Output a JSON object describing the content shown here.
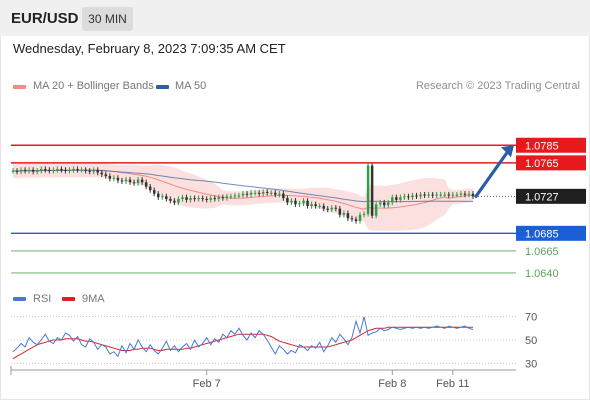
{
  "header": {
    "symbol": "EUR/USD",
    "timeframe": "30 MIN",
    "datetime": "Wednesday, February 8, 2023 7:09:35 AM CET"
  },
  "legend": {
    "ma20_label": "MA 20 + Bollinger Bands",
    "ma50_label": "MA 50",
    "credit": "Research © 2023 Trading Central",
    "colors": {
      "ma20": "#f28b82",
      "ma50": "#2e5fa3",
      "bands": "#fbd6d6"
    }
  },
  "rsi_legend": {
    "rsi_label": "RSI",
    "ma_label": "9MA",
    "colors": {
      "rsi": "#4a78d4",
      "ma": "#e02020"
    }
  },
  "chart_data": [
    {
      "type": "candlestick",
      "title": "EUR/USD",
      "ylim": [
        1.0632,
        1.0808
      ],
      "x_tick_labels": [
        {
          "label": "Feb 7",
          "index": 48
        },
        {
          "label": "Feb 8",
          "index": 94
        },
        {
          "label": "Feb 11",
          "index": 109
        }
      ],
      "close_series": [
        1.0756,
        1.0755,
        1.0757,
        1.0756,
        1.0757,
        1.0755,
        1.0756,
        1.0758,
        1.0757,
        1.0756,
        1.0757,
        1.0758,
        1.0757,
        1.0756,
        1.0757,
        1.0758,
        1.0757,
        1.0757,
        1.0756,
        1.0755,
        1.0757,
        1.0754,
        1.0752,
        1.075,
        1.0747,
        1.0748,
        1.0745,
        1.0744,
        1.0746,
        1.0743,
        1.0742,
        1.0746,
        1.0743,
        1.0738,
        1.0734,
        1.073,
        1.0726,
        1.0727,
        1.0724,
        1.0722,
        1.072,
        1.0724,
        1.0726,
        1.0723,
        1.0725,
        1.0724,
        1.0725,
        1.0724,
        1.0723,
        1.0725,
        1.0724,
        1.0726,
        1.0725,
        1.0727,
        1.0727,
        1.0728,
        1.0728,
        1.073,
        1.0729,
        1.0731,
        1.0731,
        1.073,
        1.0732,
        1.0731,
        1.0731,
        1.0729,
        1.073,
        1.0725,
        1.072,
        1.0722,
        1.0718,
        1.0719,
        1.0722,
        1.0716,
        1.0718,
        1.0716,
        1.0716,
        1.0713,
        1.0712,
        1.0714,
        1.0713,
        1.0706,
        1.0708,
        1.0702,
        1.0701,
        1.0699,
        1.0706,
        1.0707,
        1.0762,
        1.0705,
        1.0718,
        1.072,
        1.0717,
        1.072,
        1.0726,
        1.0723,
        1.0726,
        1.0727,
        1.0726,
        1.0728,
        1.0727,
        1.0729,
        1.0728,
        1.0729,
        1.0728,
        1.0729,
        1.0729,
        1.0729,
        1.0728,
        1.0729,
        1.0729,
        1.073,
        1.0729,
        1.073,
        1.0727
      ],
      "resistance_levels": [
        {
          "price": "1.0785",
          "color": "#e8191d"
        },
        {
          "price": "1.0765",
          "color": "#e8191d"
        }
      ],
      "current_price": {
        "price": "1.0727",
        "color": "#1f1f1f"
      },
      "support_levels": [
        {
          "price": "1.0685",
          "color": "#1a5fd6"
        },
        {
          "price": "1.0665",
          "color": "#5aa55a"
        },
        {
          "price": "1.0640",
          "color": "#5aa55a"
        }
      ],
      "forecast_arrow": {
        "from_price": 1.0727,
        "to_price": 1.0785,
        "color": "#2a5ca8"
      }
    },
    {
      "type": "line",
      "title": "RSI",
      "ylim": [
        20,
        80
      ],
      "y_ticks": [
        70,
        50,
        30
      ],
      "series": [
        {
          "name": "RSI",
          "values": [
            40,
            43,
            47,
            44,
            52,
            48,
            46,
            50,
            55,
            49,
            47,
            52,
            50,
            56,
            54,
            49,
            53,
            46,
            44,
            51,
            48,
            42,
            46,
            44,
            38,
            40,
            36,
            45,
            39,
            47,
            42,
            50,
            44,
            40,
            46,
            41,
            38,
            43,
            49,
            41,
            45,
            40,
            44,
            47,
            42,
            50,
            44,
            47,
            52,
            46,
            51,
            48,
            55,
            52,
            58,
            55,
            60,
            54,
            50,
            56,
            52,
            58,
            55,
            50,
            44,
            38,
            45,
            42,
            38,
            41,
            39,
            46,
            44,
            41,
            45,
            43,
            48,
            40,
            45,
            52,
            48,
            55,
            51,
            46,
            52,
            66,
            56,
            70,
            54,
            56,
            57,
            60,
            58,
            59,
            61,
            60,
            59,
            60,
            61,
            60,
            61,
            60,
            61,
            60,
            61,
            62,
            61,
            60,
            62,
            61,
            60,
            61,
            62,
            60,
            59
          ]
        },
        {
          "name": "9MA",
          "values": [
            34,
            36,
            38,
            40,
            42,
            44,
            46,
            47,
            48,
            49,
            50,
            50,
            50,
            51,
            51,
            51,
            51,
            50,
            49,
            49,
            48,
            47,
            46,
            45,
            44,
            43,
            42,
            41,
            41,
            41,
            42,
            42,
            43,
            43,
            43,
            42,
            41,
            41,
            42,
            42,
            42,
            42,
            42,
            43,
            43,
            44,
            45,
            46,
            47,
            48,
            49,
            50,
            51,
            52,
            53,
            54,
            55,
            55,
            55,
            55,
            55,
            55,
            55,
            54,
            53,
            51,
            49,
            48,
            47,
            46,
            45,
            44,
            44,
            44,
            44,
            44,
            44,
            44,
            44,
            45,
            46,
            47,
            48,
            49,
            50,
            52,
            54,
            56,
            58,
            59,
            60,
            60,
            60,
            61,
            61,
            61,
            61,
            61,
            61,
            61,
            61,
            61,
            61,
            61,
            61,
            61,
            61,
            61,
            61,
            61,
            61,
            61,
            61,
            61,
            61
          ]
        }
      ]
    }
  ]
}
